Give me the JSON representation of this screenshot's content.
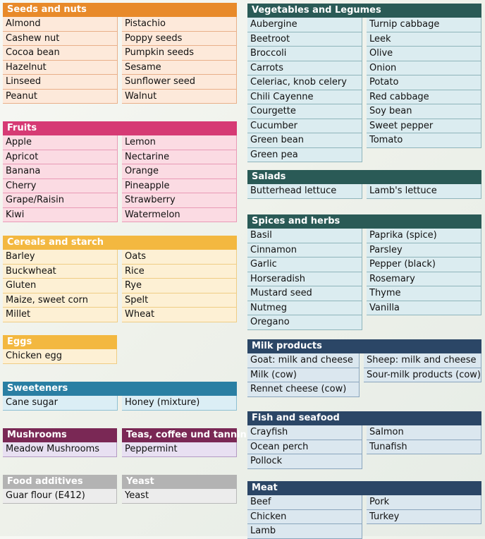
{
  "groups": [
    {
      "title": "Seeds and nuts",
      "col1": [
        "Almond",
        "Cashew nut",
        "Cocoa bean",
        "Hazelnut",
        "Linseed",
        "Peanut"
      ],
      "col2": [
        "Pistachio",
        "Poppy seeds",
        "Pumpkin seeds",
        "Sesame",
        "Sunflower seed",
        "Walnut"
      ]
    },
    {
      "title": "Fruits",
      "col1": [
        "Apple",
        "Apricot",
        "Banana",
        "Cherry",
        "Grape/Raisin",
        "Kiwi"
      ],
      "col2": [
        "Lemon",
        "Nectarine",
        "Orange",
        "Pineapple",
        "Strawberry",
        "Watermelon"
      ]
    },
    {
      "title": "Cereals and starch",
      "col1": [
        "Barley",
        "Buckwheat",
        "Gluten",
        "Maize, sweet corn",
        "Millet"
      ],
      "col2": [
        "Oats",
        "Rice",
        "Rye",
        "Spelt",
        "Wheat"
      ]
    },
    {
      "title": "Eggs",
      "col1": [
        "Chicken egg"
      ],
      "col2": []
    },
    {
      "title": "Sweeteners",
      "col1": [
        "Cane sugar"
      ],
      "col2": [
        "Honey (mixture)"
      ]
    },
    {
      "title": "Mushrooms",
      "col1": [
        "Meadow Mushrooms"
      ],
      "col2": []
    },
    {
      "title": "Teas, coffee und tannin",
      "col1": [
        "Peppermint"
      ],
      "col2": []
    },
    {
      "title": "Food additives",
      "col1": [
        "Guar flour (E412)"
      ],
      "col2": []
    },
    {
      "title": "Yeast",
      "col1": [
        "Yeast"
      ],
      "col2": []
    },
    {
      "title": "Vegetables and Legumes",
      "col1": [
        "Aubergine",
        "Beetroot",
        "Broccoli",
        "Carrots",
        "Celeriac, knob celery",
        "Chili Cayenne",
        "Courgette",
        "Cucumber",
        "Green bean",
        "Green pea"
      ],
      "col2": [
        "Turnip cabbage",
        "Leek",
        "Olive",
        "Onion",
        "Potato",
        "Red cabbage",
        "Soy bean",
        "Sweet pepper",
        "Tomato"
      ]
    },
    {
      "title": "Salads",
      "col1": [
        "Butterhead lettuce"
      ],
      "col2": [
        "Lamb's lettuce"
      ]
    },
    {
      "title": "Spices and herbs",
      "col1": [
        "Basil",
        "Cinnamon",
        "Garlic",
        "Horseradish",
        "Mustard seed",
        "Nutmeg",
        "Oregano"
      ],
      "col2": [
        "Paprika (spice)",
        "Parsley",
        "Pepper (black)",
        "Rosemary",
        "Thyme",
        "Vanilla"
      ]
    },
    {
      "title": "Milk products",
      "col1": [
        "Goat: milk and cheese",
        "Milk (cow)",
        "Rennet cheese (cow)"
      ],
      "col2": [
        "Sheep: milk and cheese",
        "Sour-milk products (cow)"
      ]
    },
    {
      "title": "Fish and seafood",
      "col1": [
        "Crayfish",
        "Ocean perch",
        "Pollock"
      ],
      "col2": [
        "Salmon",
        "Tunafish"
      ]
    },
    {
      "title": "Meat",
      "col1": [
        "Beef",
        "Chicken",
        "Lamb"
      ],
      "col2": [
        "Pork",
        "Turkey"
      ]
    }
  ],
  "colors": {
    "orange": "#e88a2a",
    "pink": "#d63a74",
    "yellow": "#f3b840",
    "blue": "#2a7fa3",
    "purple": "#7a2855",
    "gray": "#b3b3b3",
    "teal": "#2a5a56",
    "navy": "#2b4666"
  }
}
